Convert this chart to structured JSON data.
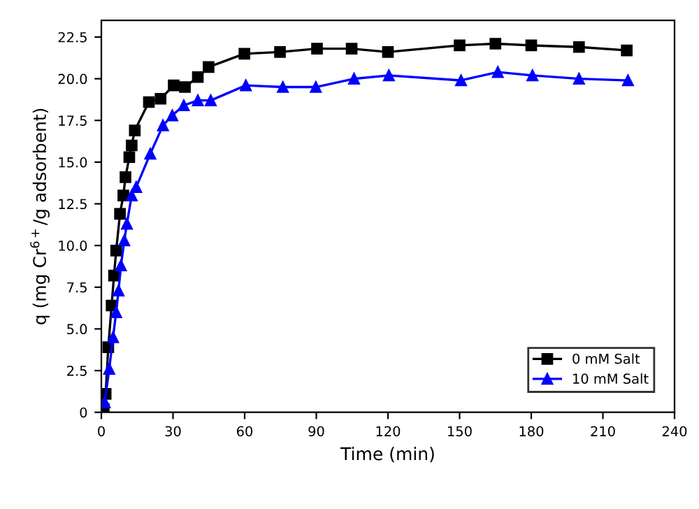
{
  "chart_data": {
    "type": "line",
    "xlabel": "Time (min)",
    "ylabel": "q (mg Cr$^{6+}$/g adsorbent)",
    "xlim": [
      0,
      240
    ],
    "xticks": [
      0,
      30,
      60,
      90,
      120,
      150,
      180,
      210,
      240
    ],
    "ylim": [
      0,
      23.5
    ],
    "yticks": [
      0,
      2.5,
      {
        "value": 5,
        "label": "5.0"
      },
      7.5,
      {
        "value": 10,
        "label": "10.0"
      },
      12.5,
      {
        "value": 15,
        "label": "15.0"
      },
      17.5,
      {
        "value": 20,
        "label": "20.0"
      },
      22.5
    ],
    "legend": "bottom right",
    "grid": false,
    "line_style": "solid",
    "series": [
      {
        "name": "0 mM Salt",
        "color": "#000000",
        "marker": "square",
        "x": [
          1,
          1.8,
          2.9,
          4.3,
          5.3,
          6.2,
          7.8,
          9.2,
          10.1,
          11.7,
          12.7,
          14,
          19.9,
          24.8,
          30.3,
          35,
          40.4,
          44.9,
          59.9,
          74.8,
          90.3,
          104.8,
          120,
          150,
          165,
          180,
          200,
          220
        ],
        "values": [
          0.2,
          1.1,
          3.9,
          6.4,
          8.2,
          9.7,
          11.9,
          13.0,
          14.1,
          15.3,
          16.0,
          16.9,
          18.6,
          18.8,
          19.6,
          19.5,
          20.1,
          20.7,
          21.5,
          21.6,
          21.8,
          21.8,
          21.6,
          22.0,
          22.1,
          22.0,
          21.9,
          21.7
        ]
      },
      {
        "name": "10 mM Salt",
        "color": "#0000ff",
        "marker": "triangle",
        "x": [
          1.4,
          3.3,
          4.9,
          6.2,
          7.2,
          8.2,
          9.6,
          10.7,
          12.7,
          14.6,
          20.5,
          25.8,
          29.7,
          34.5,
          40.4,
          45.8,
          60.5,
          76,
          89.8,
          105.8,
          120.4,
          150.6,
          166,
          180.5,
          200,
          220.5
        ],
        "values": [
          0.6,
          2.6,
          4.5,
          6.0,
          7.3,
          8.8,
          10.3,
          11.3,
          13.0,
          13.5,
          15.5,
          17.2,
          17.8,
          18.4,
          18.7,
          18.7,
          19.6,
          19.5,
          19.5,
          20.0,
          20.2,
          19.9,
          20.4,
          20.2,
          20.0,
          19.9
        ]
      }
    ]
  }
}
